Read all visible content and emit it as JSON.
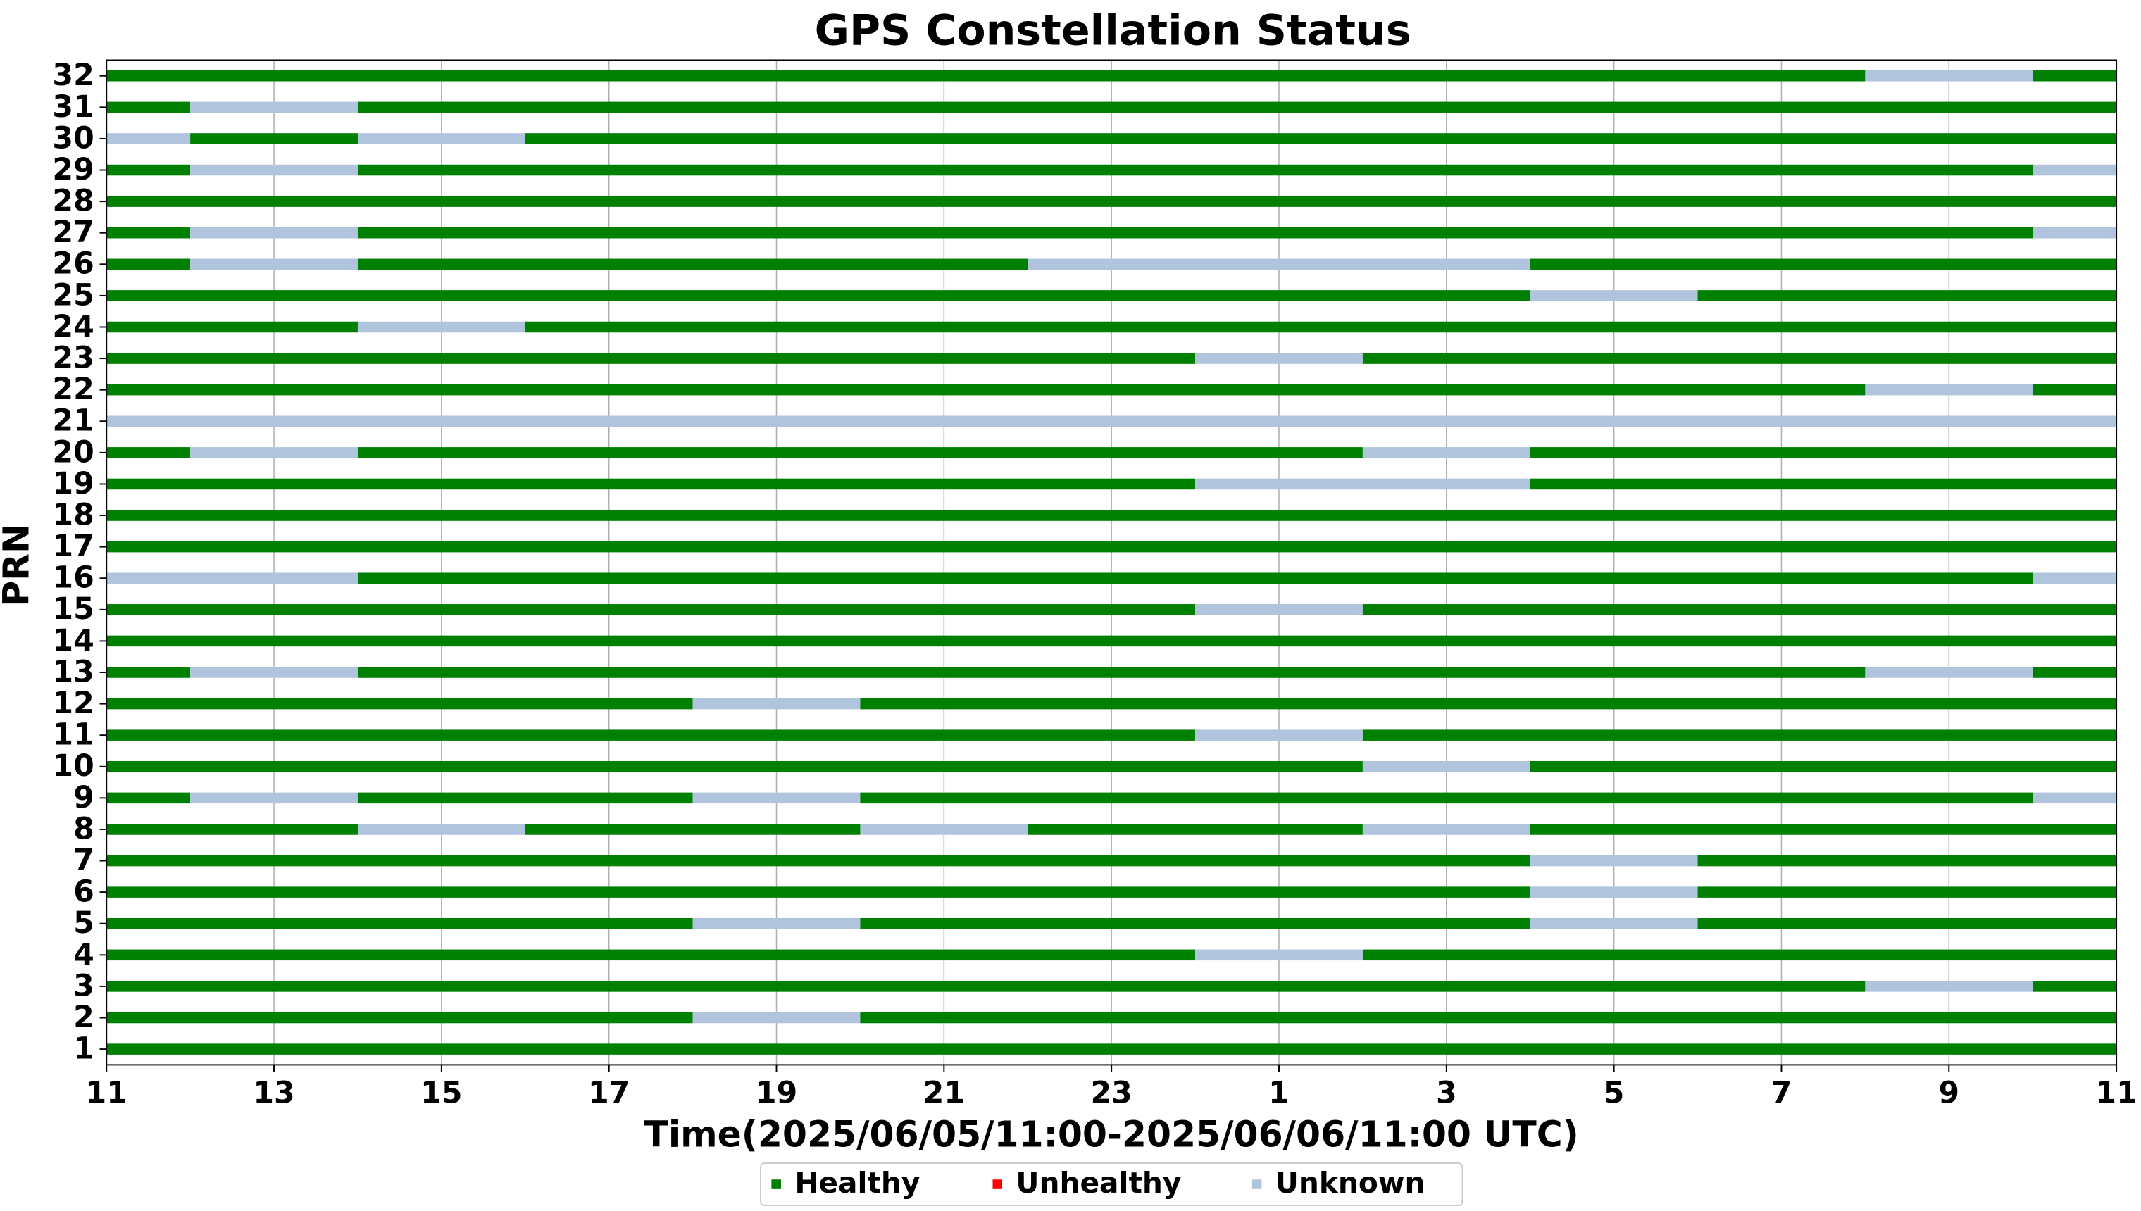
{
  "chart_data": {
    "type": "timeline",
    "title": "GPS Constellation Status",
    "x_label": "Time(2025/06/05/11:00-2025/06/06/11:00 UTC)",
    "y_label": "PRN",
    "xlim": [
      0,
      24
    ],
    "xticks": [
      {
        "value": 0,
        "label": "11"
      },
      {
        "value": 2,
        "label": "13"
      },
      {
        "value": 4,
        "label": "15"
      },
      {
        "value": 6,
        "label": "17"
      },
      {
        "value": 8,
        "label": "19"
      },
      {
        "value": 10,
        "label": "21"
      },
      {
        "value": 12,
        "label": "23"
      },
      {
        "value": 14,
        "label": "1"
      },
      {
        "value": 16,
        "label": "3"
      },
      {
        "value": 18,
        "label": "5"
      },
      {
        "value": 20,
        "label": "7"
      },
      {
        "value": 22,
        "label": "9"
      },
      {
        "value": 24,
        "label": "11"
      }
    ],
    "grid": true,
    "legend": "lower center",
    "series": [
      {
        "name": "Healthy",
        "color": "#008000"
      },
      {
        "name": "Unhealthy",
        "color": "#ff0000"
      },
      {
        "name": "Unknown",
        "color": "#b0c4de"
      }
    ],
    "categories": [
      "1",
      "2",
      "3",
      "4",
      "5",
      "6",
      "7",
      "8",
      "9",
      "10",
      "11",
      "12",
      "13",
      "14",
      "15",
      "16",
      "17",
      "18",
      "19",
      "20",
      "21",
      "22",
      "23",
      "24",
      "25",
      "26",
      "27",
      "28",
      "29",
      "30",
      "31",
      "32"
    ],
    "rows": [
      [
        [
          0,
          24,
          "Healthy"
        ]
      ],
      [
        [
          0,
          7,
          "Healthy"
        ],
        [
          7,
          9,
          "Unknown"
        ],
        [
          9,
          24,
          "Healthy"
        ]
      ],
      [
        [
          0,
          21,
          "Healthy"
        ],
        [
          21,
          23,
          "Unknown"
        ],
        [
          23,
          24,
          "Healthy"
        ]
      ],
      [
        [
          0,
          13,
          "Healthy"
        ],
        [
          13,
          15,
          "Unknown"
        ],
        [
          15,
          24,
          "Healthy"
        ]
      ],
      [
        [
          0,
          7,
          "Healthy"
        ],
        [
          7,
          9,
          "Unknown"
        ],
        [
          9,
          17,
          "Healthy"
        ],
        [
          17,
          19,
          "Unknown"
        ],
        [
          19,
          24,
          "Healthy"
        ]
      ],
      [
        [
          0,
          17,
          "Healthy"
        ],
        [
          17,
          19,
          "Unknown"
        ],
        [
          19,
          24,
          "Healthy"
        ]
      ],
      [
        [
          0,
          17,
          "Healthy"
        ],
        [
          17,
          19,
          "Unknown"
        ],
        [
          19,
          24,
          "Healthy"
        ]
      ],
      [
        [
          0,
          3,
          "Healthy"
        ],
        [
          3,
          5,
          "Unknown"
        ],
        [
          5,
          9,
          "Healthy"
        ],
        [
          9,
          11,
          "Unknown"
        ],
        [
          11,
          15,
          "Healthy"
        ],
        [
          15,
          17,
          "Unknown"
        ],
        [
          17,
          24,
          "Healthy"
        ]
      ],
      [
        [
          0,
          1,
          "Healthy"
        ],
        [
          1,
          3,
          "Unknown"
        ],
        [
          3,
          7,
          "Healthy"
        ],
        [
          7,
          9,
          "Unknown"
        ],
        [
          9,
          23,
          "Healthy"
        ],
        [
          23,
          24,
          "Unknown"
        ]
      ],
      [
        [
          0,
          15,
          "Healthy"
        ],
        [
          15,
          17,
          "Unknown"
        ],
        [
          17,
          24,
          "Healthy"
        ]
      ],
      [
        [
          0,
          13,
          "Healthy"
        ],
        [
          13,
          15,
          "Unknown"
        ],
        [
          15,
          24,
          "Healthy"
        ]
      ],
      [
        [
          0,
          7,
          "Healthy"
        ],
        [
          7,
          9,
          "Unknown"
        ],
        [
          9,
          24,
          "Healthy"
        ]
      ],
      [
        [
          0,
          1,
          "Healthy"
        ],
        [
          1,
          3,
          "Unknown"
        ],
        [
          3,
          21,
          "Healthy"
        ],
        [
          21,
          23,
          "Unknown"
        ],
        [
          23,
          24,
          "Healthy"
        ]
      ],
      [
        [
          0,
          24,
          "Healthy"
        ]
      ],
      [
        [
          0,
          13,
          "Healthy"
        ],
        [
          13,
          15,
          "Unknown"
        ],
        [
          15,
          24,
          "Healthy"
        ]
      ],
      [
        [
          0,
          3,
          "Unknown"
        ],
        [
          3,
          23,
          "Healthy"
        ],
        [
          23,
          24,
          "Unknown"
        ]
      ],
      [
        [
          0,
          24,
          "Healthy"
        ]
      ],
      [
        [
          0,
          24,
          "Healthy"
        ]
      ],
      [
        [
          0,
          13,
          "Healthy"
        ],
        [
          13,
          17,
          "Unknown"
        ],
        [
          17,
          24,
          "Healthy"
        ]
      ],
      [
        [
          0,
          1,
          "Healthy"
        ],
        [
          1,
          3,
          "Unknown"
        ],
        [
          3,
          15,
          "Healthy"
        ],
        [
          15,
          17,
          "Unknown"
        ],
        [
          17,
          24,
          "Healthy"
        ]
      ],
      [
        [
          0,
          24,
          "Unknown"
        ]
      ],
      [
        [
          0,
          21,
          "Healthy"
        ],
        [
          21,
          23,
          "Unknown"
        ],
        [
          23,
          24,
          "Healthy"
        ]
      ],
      [
        [
          0,
          13,
          "Healthy"
        ],
        [
          13,
          15,
          "Unknown"
        ],
        [
          15,
          24,
          "Healthy"
        ]
      ],
      [
        [
          0,
          3,
          "Healthy"
        ],
        [
          3,
          5,
          "Unknown"
        ],
        [
          5,
          24,
          "Healthy"
        ]
      ],
      [
        [
          0,
          17,
          "Healthy"
        ],
        [
          17,
          19,
          "Unknown"
        ],
        [
          19,
          24,
          "Healthy"
        ]
      ],
      [
        [
          0,
          1,
          "Healthy"
        ],
        [
          1,
          3,
          "Unknown"
        ],
        [
          3,
          11,
          "Healthy"
        ],
        [
          11,
          17,
          "Unknown"
        ],
        [
          17,
          24,
          "Healthy"
        ]
      ],
      [
        [
          0,
          1,
          "Healthy"
        ],
        [
          1,
          3,
          "Unknown"
        ],
        [
          3,
          23,
          "Healthy"
        ],
        [
          23,
          24,
          "Unknown"
        ]
      ],
      [
        [
          0,
          24,
          "Healthy"
        ]
      ],
      [
        [
          0,
          1,
          "Healthy"
        ],
        [
          1,
          3,
          "Unknown"
        ],
        [
          3,
          23,
          "Healthy"
        ],
        [
          23,
          24,
          "Unknown"
        ]
      ],
      [
        [
          0,
          1,
          "Unknown"
        ],
        [
          1,
          3,
          "Healthy"
        ],
        [
          3,
          5,
          "Unknown"
        ],
        [
          5,
          24,
          "Healthy"
        ]
      ],
      [
        [
          0,
          1,
          "Healthy"
        ],
        [
          1,
          3,
          "Unknown"
        ],
        [
          3,
          24,
          "Healthy"
        ]
      ],
      [
        [
          0,
          21,
          "Healthy"
        ],
        [
          21,
          23,
          "Unknown"
        ],
        [
          23,
          24,
          "Healthy"
        ]
      ]
    ]
  }
}
